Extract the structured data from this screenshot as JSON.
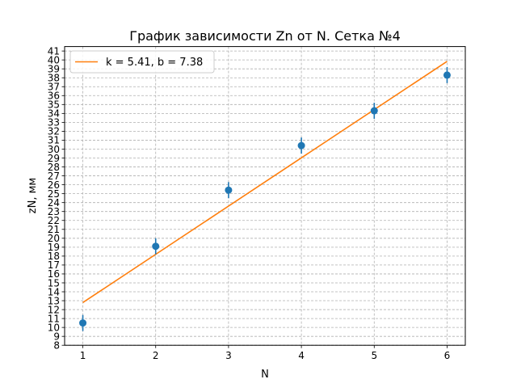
{
  "chart_data": {
    "type": "scatter",
    "title": "График зависимости Zn от N. Сетка №4",
    "xlabel": "N",
    "ylabel": "zN, мм",
    "xlim": [
      0.75,
      6.25
    ],
    "ylim": [
      8,
      41.5
    ],
    "xticks": [
      "1",
      "2",
      "3",
      "4",
      "5",
      "6"
    ],
    "yticks": [
      "8",
      "9",
      "10",
      "11",
      "12",
      "13",
      "14",
      "15",
      "16",
      "17",
      "18",
      "19",
      "20",
      "21",
      "22",
      "23",
      "24",
      "25",
      "26",
      "27",
      "28",
      "29",
      "30",
      "31",
      "32",
      "33",
      "34",
      "35",
      "36",
      "37",
      "38",
      "39",
      "40",
      "41"
    ],
    "grid": true,
    "legend_position": "top-left",
    "series": [
      {
        "kind": "points_with_errorbars",
        "color": "#1f77b4",
        "x": [
          1,
          2,
          3,
          4,
          5,
          6
        ],
        "y": [
          10.5,
          19.1,
          25.4,
          30.4,
          34.3,
          38.3
        ],
        "yerr": [
          0.9,
          0.9,
          0.9,
          0.9,
          0.9,
          0.9
        ]
      },
      {
        "kind": "fit_line",
        "name": "k = 5.41, b = 7.38",
        "color": "#ff7f0e",
        "x": [
          1,
          6
        ],
        "y": [
          12.79,
          39.84
        ]
      }
    ]
  }
}
